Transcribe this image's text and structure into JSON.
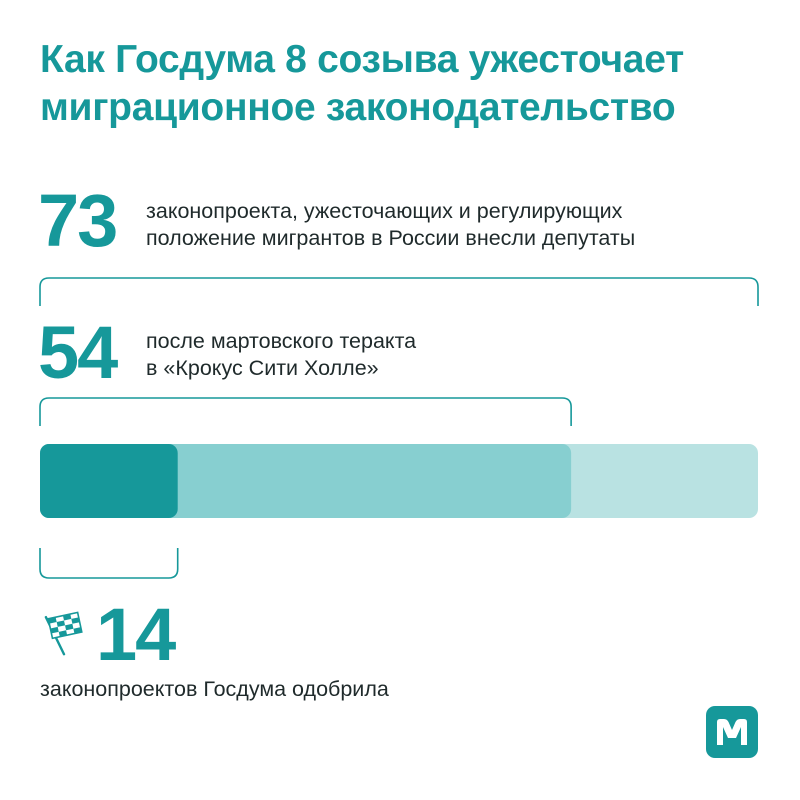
{
  "title": {
    "line1": "Как Госдума 8 созыва ужесточает",
    "line2": "миграционное законодательство"
  },
  "colors": {
    "accent": "#16989a",
    "bar_introduced": "#b9e2e2",
    "bar_after_attack": "#87cfd0",
    "bar_approved": "#16989a",
    "text": "#1f2a2b"
  },
  "chart_data": {
    "type": "bar",
    "orientation": "horizontal-stacked-overlay",
    "total": 73,
    "series": [
      {
        "value": 73,
        "label_line1": "законопроекта, ужесточающих и регулирующих",
        "label_line2": "положение мигрантов в России внесли депутаты"
      },
      {
        "value": 54,
        "label_line1": "после мартовского теракта",
        "label_line2": "в «Крокус Сити Холле»"
      },
      {
        "value": 14,
        "label_line1": "законопроектов Госдума одобрила",
        "label_line2": ""
      }
    ]
  },
  "stats": {
    "introduced": {
      "number": "73"
    },
    "after_attack": {
      "number": "54"
    },
    "approved": {
      "number": "14",
      "icon": "checkered-flag-icon"
    }
  },
  "logo": {
    "icon": "m-logo-icon"
  }
}
